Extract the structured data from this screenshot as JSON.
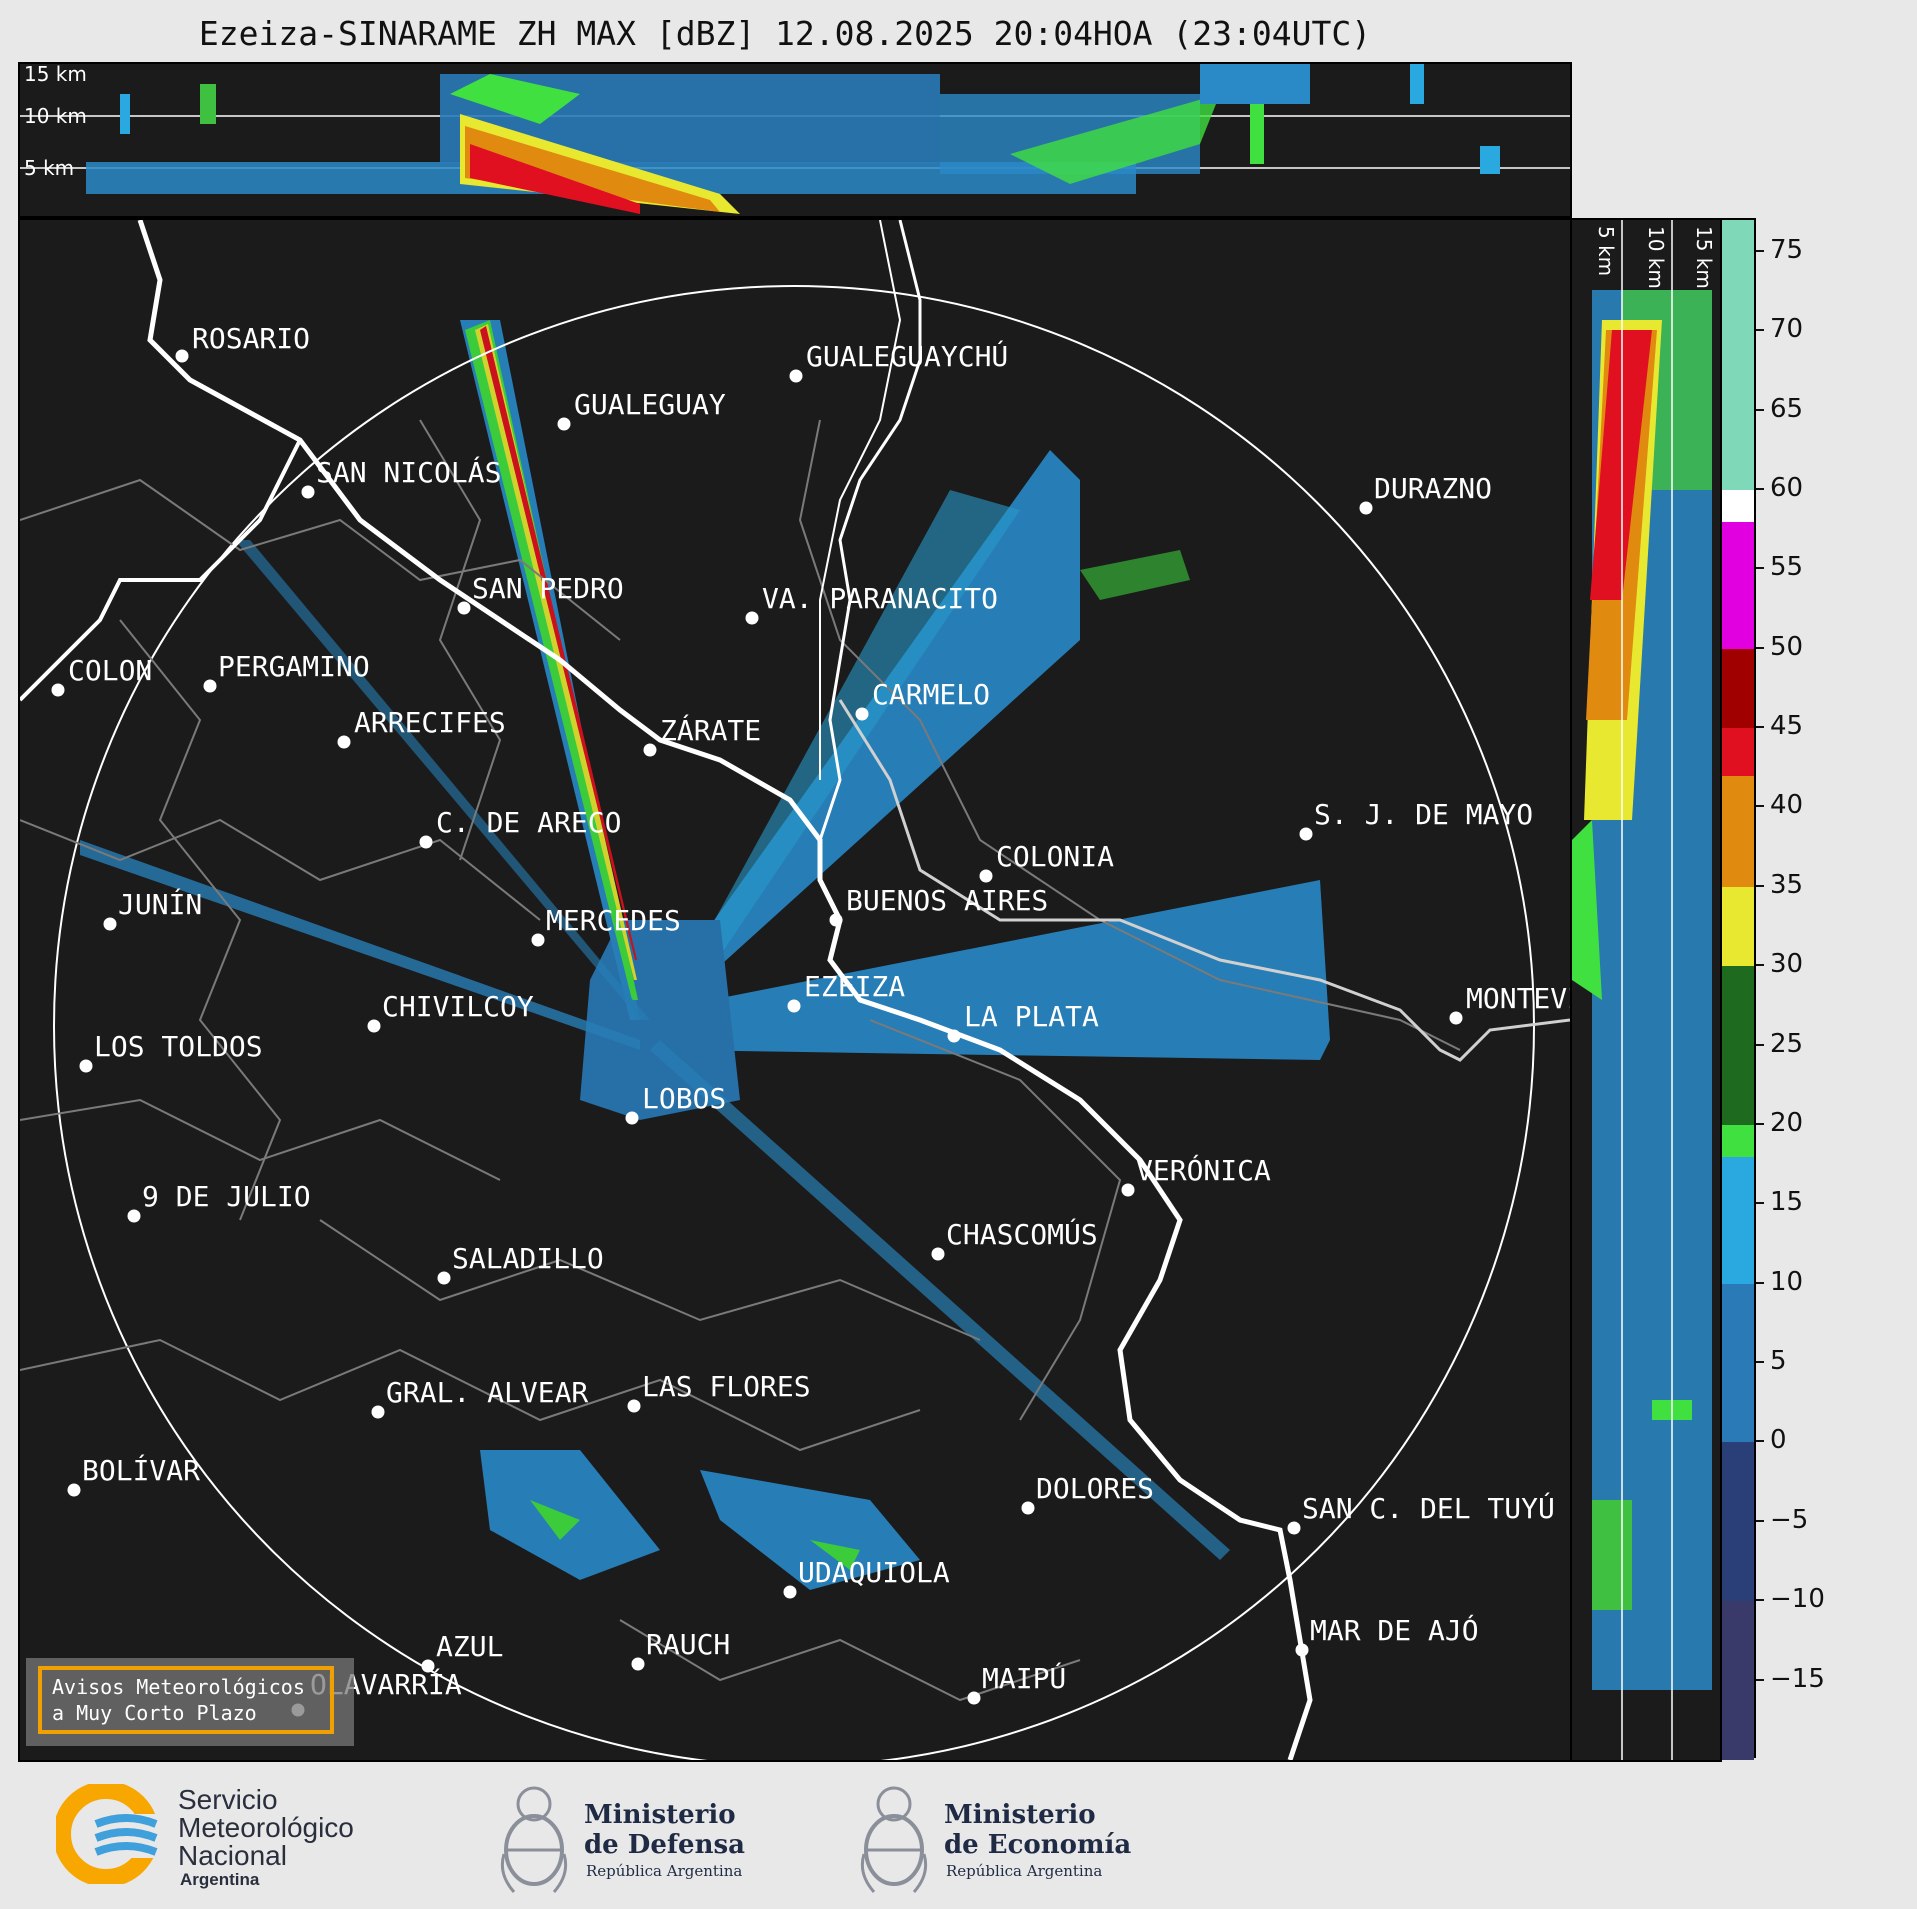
{
  "title": "Ezeiza-SINARAME ZH MAX [dBZ] 12.08.2025 20:04HOA (23:04UTC)",
  "height_labels": [
    "15 km",
    "10 km",
    "5 km"
  ],
  "side_height_labels": [
    "5 km",
    "10 km",
    "15 km"
  ],
  "cities": [
    {
      "name": "ROSARIO"
    },
    {
      "name": "GUALEGUAYCHÚ"
    },
    {
      "name": "GUALEGUAY"
    },
    {
      "name": "SAN NICOLÁS"
    },
    {
      "name": "DURAZNO"
    },
    {
      "name": "SAN PEDRO"
    },
    {
      "name": "VA. PARANACITO"
    },
    {
      "name": "COLON"
    },
    {
      "name": "PERGAMINO"
    },
    {
      "name": "CARMELO"
    },
    {
      "name": "ARRECIFES"
    },
    {
      "name": "ZÁRATE"
    },
    {
      "name": "S. J. DE MAYO"
    },
    {
      "name": "C. DE ARECO"
    },
    {
      "name": "COLONIA"
    },
    {
      "name": "JUNÍN"
    },
    {
      "name": "BUENOS AIRES"
    },
    {
      "name": "MERCEDES"
    },
    {
      "name": "EZEIZA"
    },
    {
      "name": "MONTEVIDEO"
    },
    {
      "name": "CHIVILCOY"
    },
    {
      "name": "LA PLATA"
    },
    {
      "name": "LOS TOLDOS"
    },
    {
      "name": "LOBOS"
    },
    {
      "name": "VERÓNICA"
    },
    {
      "name": "9 DE JULIO"
    },
    {
      "name": "CHASCOMÚS"
    },
    {
      "name": "SALADILLO"
    },
    {
      "name": "GRAL. ALVEAR"
    },
    {
      "name": "LAS FLORES"
    },
    {
      "name": "BOLÍVAR"
    },
    {
      "name": "DOLORES"
    },
    {
      "name": "SAN C. DEL TUYÚ"
    },
    {
      "name": "UDAQUIOLA"
    },
    {
      "name": "MAR DE AJÓ"
    },
    {
      "name": "AZUL"
    },
    {
      "name": "RAUCH"
    },
    {
      "name": "OLAVARRÍA"
    },
    {
      "name": "MAIPÚ"
    }
  ],
  "colorbar": {
    "unit": "dBZ",
    "tick_labels": [
      "75",
      "70",
      "65",
      "60",
      "55",
      "50",
      "45",
      "40",
      "35",
      "30",
      "25",
      "20",
      "15",
      "10",
      "5",
      "0",
      "−5",
      "−10",
      "−15"
    ],
    "colors": {
      "teal_high": "#7fd8b8",
      "white": "#ffffff",
      "magenta": "#e000e0",
      "dark_red": "#a00000",
      "red": "#e01020",
      "orange": "#e08a10",
      "yellow": "#e8e830",
      "dark_green": "#1e6a1e",
      "green": "#40e040",
      "light_blue": "#2aa8e0",
      "blue": "#2a7ab8",
      "dark_blue": "#2a3e78",
      "navy": "#3a3a6a"
    }
  },
  "alert": {
    "line1": "Avisos Meteorológicos",
    "line2": "a Muy Corto Plazo"
  },
  "logos": {
    "smn": {
      "line1": "Servicio",
      "line2": "Meteorológico",
      "line3": "Nacional",
      "line4": "Argentina"
    },
    "defensa": {
      "line1": "Ministerio",
      "line2": "de Defensa",
      "line3": "República Argentina"
    },
    "economia": {
      "line1": "Ministerio",
      "line2": "de Economía",
      "line3": "República Argentina"
    }
  }
}
